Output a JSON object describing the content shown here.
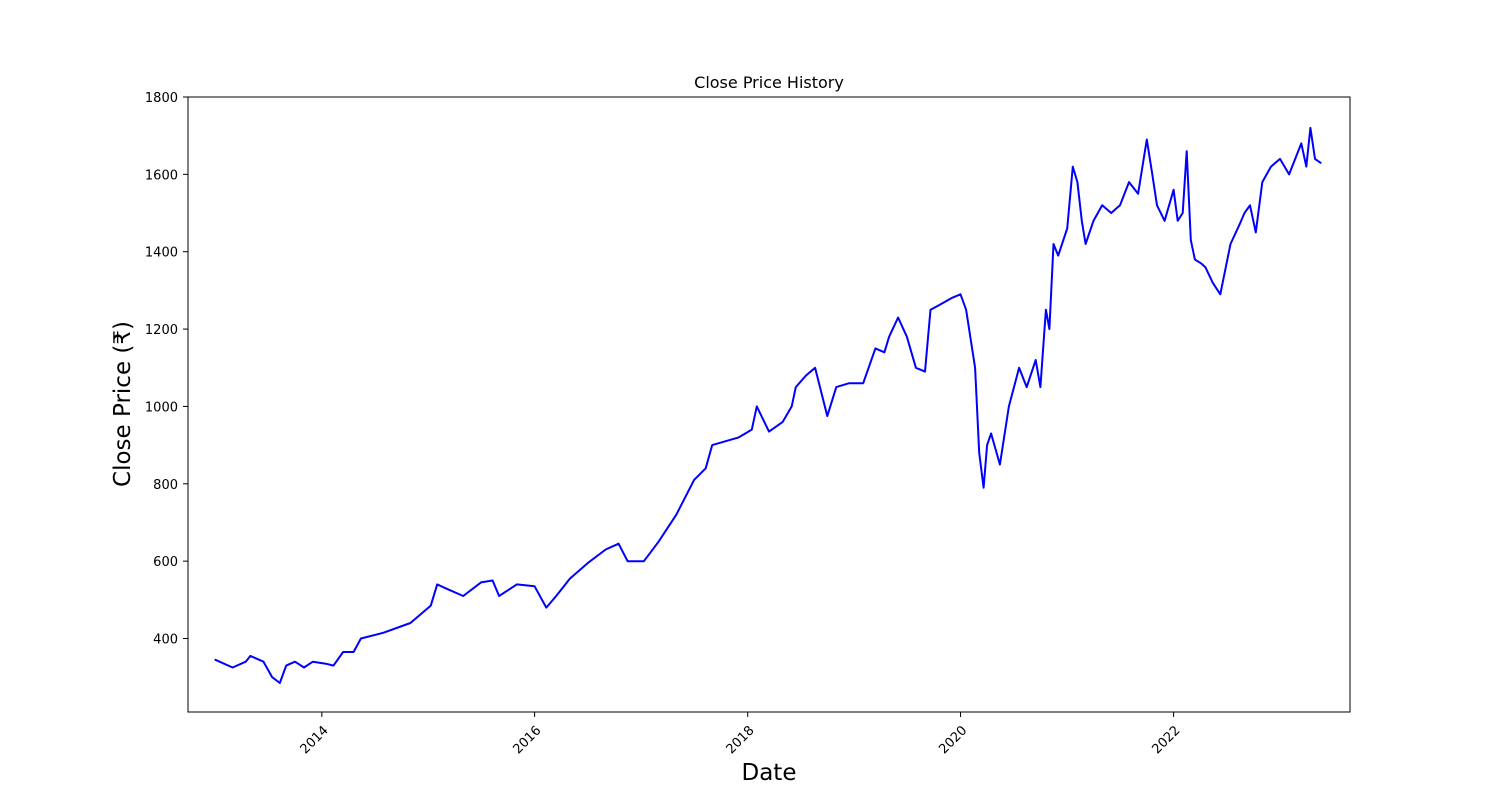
{
  "chart_data": {
    "type": "line",
    "title": "Close Price History",
    "xlabel": "Date",
    "ylabel": "Close Price (₹)",
    "xlim": [
      "2012-09-29",
      "2023-08-29"
    ],
    "ylim": [
      210,
      1800
    ],
    "x_ticks": [
      "2014-01-01",
      "2016-01-01",
      "2018-01-01",
      "2020-01-01",
      "2022-01-01"
    ],
    "x_tick_labels": [
      "2014",
      "2016",
      "2018",
      "2020",
      "2022"
    ],
    "y_ticks": [
      400,
      600,
      800,
      1000,
      1200,
      1400,
      1600,
      1800
    ],
    "y_tick_labels": [
      "400",
      "600",
      "800",
      "1000",
      "1200",
      "1400",
      "1600",
      "1800"
    ],
    "grid": false,
    "legend": false,
    "series": [
      {
        "color": "#0000ff",
        "x": [
          "2013-01-01",
          "2013-03-01",
          "2013-04-15",
          "2013-05-01",
          "2013-06-15",
          "2013-07-15",
          "2013-08-10",
          "2013-09-01",
          "2013-10-01",
          "2013-11-01",
          "2013-12-01",
          "2014-01-15",
          "2014-02-10",
          "2014-03-15",
          "2014-04-20",
          "2014-05-15",
          "2014-08-01",
          "2014-11-01",
          "2015-01-10",
          "2015-02-01",
          "2015-03-01",
          "2015-05-01",
          "2015-07-01",
          "2015-08-10",
          "2015-09-01",
          "2015-11-01",
          "2016-01-01",
          "2016-02-10",
          "2016-03-15",
          "2016-05-01",
          "2016-07-01",
          "2016-09-01",
          "2016-10-15",
          "2016-11-15",
          "2017-01-10",
          "2017-03-01",
          "2017-05-01",
          "2017-07-01",
          "2017-08-10",
          "2017-09-01",
          "2017-12-01",
          "2018-01-15",
          "2018-02-01",
          "2018-03-15",
          "2018-05-01",
          "2018-06-01",
          "2018-06-15",
          "2018-07-20",
          "2018-08-20",
          "2018-10-01",
          "2018-11-01",
          "2018-12-15",
          "2019-02-01",
          "2019-03-15",
          "2019-04-15",
          "2019-05-01",
          "2019-06-01",
          "2019-07-01",
          "2019-08-01",
          "2019-09-01",
          "2019-09-20",
          "2019-10-15",
          "2019-12-01",
          "2020-01-01",
          "2020-01-20",
          "2020-02-20",
          "2020-03-05",
          "2020-03-20",
          "2020-04-01",
          "2020-04-15",
          "2020-05-15",
          "2020-06-15",
          "2020-07-20",
          "2020-08-15",
          "2020-09-15",
          "2020-10-01",
          "2020-10-20",
          "2020-11-01",
          "2020-11-15",
          "2020-12-01",
          "2021-01-01",
          "2021-01-20",
          "2021-02-05",
          "2021-02-20",
          "2021-03-05",
          "2021-04-01",
          "2021-05-01",
          "2021-06-01",
          "2021-07-01",
          "2021-08-01",
          "2021-09-01",
          "2021-10-01",
          "2021-10-20",
          "2021-11-05",
          "2021-12-01",
          "2022-01-01",
          "2022-01-15",
          "2022-02-01",
          "2022-02-15",
          "2022-03-01",
          "2022-03-15",
          "2022-04-05",
          "2022-04-20",
          "2022-05-15",
          "2022-06-10",
          "2022-07-15",
          "2022-08-15",
          "2022-09-01",
          "2022-09-20",
          "2022-10-10",
          "2022-11-01",
          "2022-12-01",
          "2023-01-01",
          "2023-02-01",
          "2023-03-15",
          "2023-04-01",
          "2023-04-15",
          "2023-05-01",
          "2023-05-20"
        ],
        "y": [
          345,
          325,
          340,
          355,
          340,
          300,
          285,
          330,
          340,
          325,
          340,
          335,
          330,
          365,
          365,
          400,
          415,
          440,
          485,
          540,
          530,
          510,
          545,
          550,
          510,
          540,
          535,
          480,
          510,
          555,
          595,
          630,
          645,
          600,
          600,
          650,
          720,
          810,
          840,
          900,
          920,
          940,
          1000,
          935,
          960,
          1000,
          1050,
          1080,
          1100,
          975,
          1050,
          1060,
          1060,
          1150,
          1140,
          1180,
          1230,
          1180,
          1100,
          1090,
          1250,
          1260,
          1280,
          1290,
          1250,
          1100,
          880,
          790,
          900,
          930,
          850,
          1000,
          1100,
          1050,
          1120,
          1050,
          1250,
          1200,
          1420,
          1390,
          1460,
          1620,
          1580,
          1480,
          1420,
          1480,
          1520,
          1500,
          1520,
          1580,
          1550,
          1690,
          1600,
          1520,
          1480,
          1560,
          1480,
          1500,
          1660,
          1430,
          1380,
          1370,
          1360,
          1320,
          1290,
          1420,
          1470,
          1500,
          1520,
          1450,
          1580,
          1620,
          1640,
          1600,
          1680,
          1620,
          1720,
          1640,
          1630
        ]
      }
    ]
  }
}
